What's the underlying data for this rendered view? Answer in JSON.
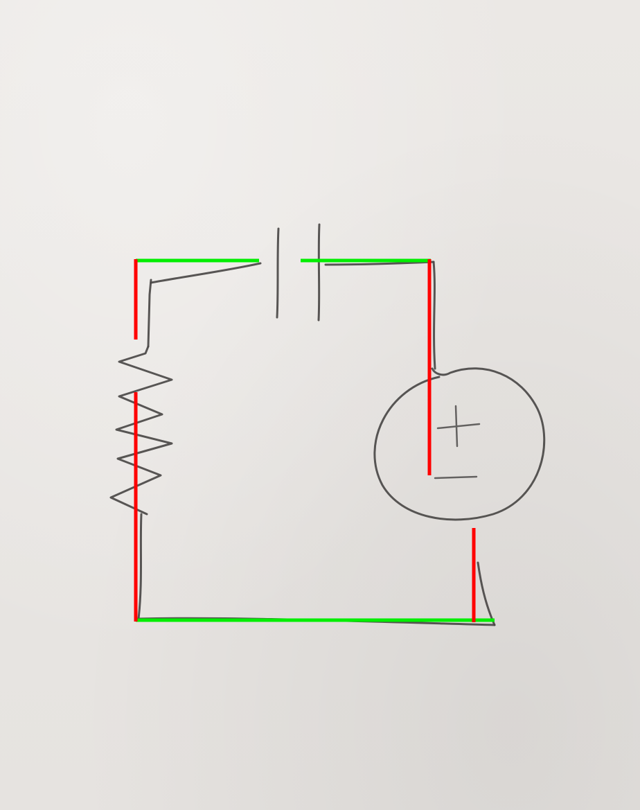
{
  "diagram": {
    "components": [
      {
        "kind": "resistor",
        "icon": "resistor-zigzag"
      },
      {
        "kind": "capacitor",
        "icon": "capacitor-parallel-plates"
      },
      {
        "kind": "voltage-source",
        "icon": "circle-plus-minus"
      }
    ],
    "source_marks": {
      "plus": "+",
      "minus": "−"
    },
    "overlay_colors": {
      "vertical_wire_mark": "#ff0000",
      "horizontal_wire_mark": "#00ee00"
    }
  }
}
